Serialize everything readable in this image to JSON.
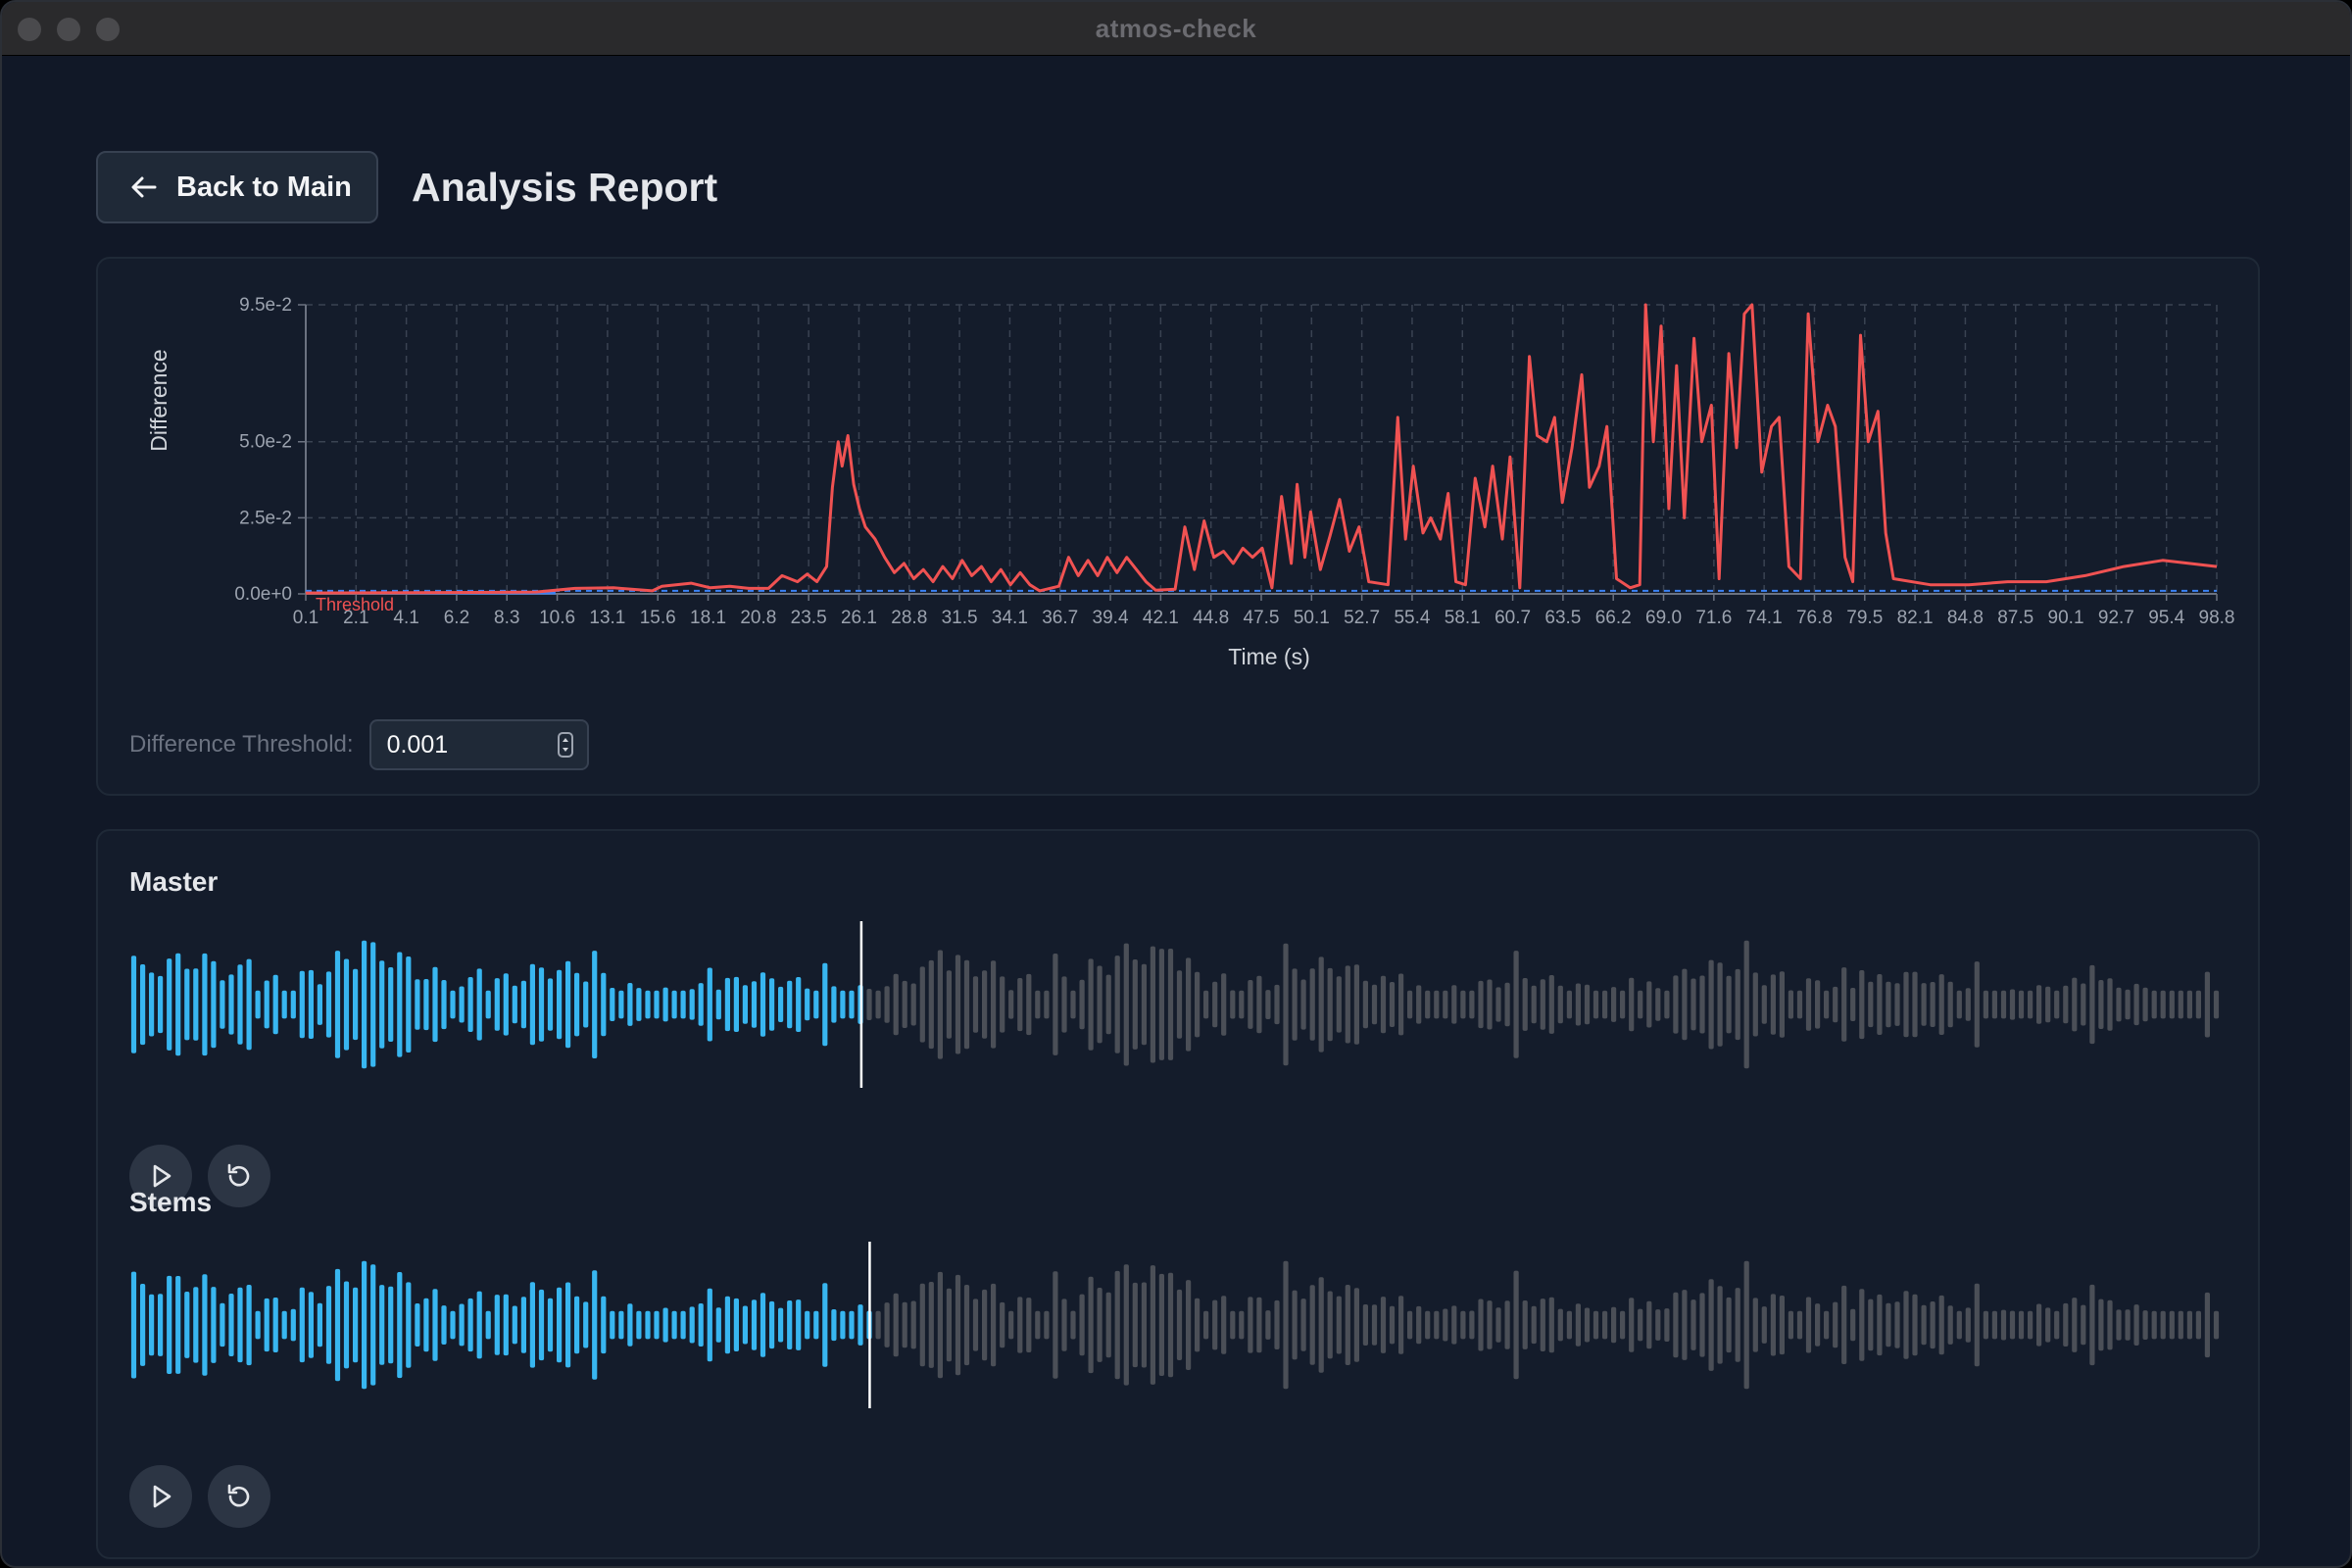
{
  "window": {
    "title": "atmos-check"
  },
  "header": {
    "back_label": "Back to Main",
    "title": "Analysis Report"
  },
  "controls": {
    "threshold_label": "Difference Threshold:",
    "threshold_value": "0.001"
  },
  "colors": {
    "diff_line": "#f05252",
    "threshold_line": "#3b82f6",
    "played": "#38b6f0",
    "unplayed": "#4b4f57",
    "grid": "#3a4352"
  },
  "tracks": [
    {
      "title": "Master",
      "progress": 0.35,
      "play_icon": "play-icon",
      "restart_icon": "restart-icon"
    },
    {
      "title": "Stems",
      "progress": 0.354,
      "play_icon": "play-icon",
      "restart_icon": "restart-icon"
    }
  ],
  "chart_data": {
    "type": "line",
    "xlabel": "Time (s)",
    "ylabel": "Difference",
    "xlim": [
      0.1,
      98.8
    ],
    "ylim": [
      0,
      0.095
    ],
    "x_ticks": [
      "0.1",
      "2.1",
      "4.1",
      "6.2",
      "8.3",
      "10.6",
      "13.1",
      "15.6",
      "18.1",
      "20.8",
      "23.5",
      "26.1",
      "28.8",
      "31.5",
      "34.1",
      "36.7",
      "39.4",
      "42.1",
      "44.8",
      "47.5",
      "50.1",
      "52.7",
      "55.4",
      "58.1",
      "60.7",
      "63.5",
      "66.2",
      "69.0",
      "71.6",
      "74.1",
      "76.8",
      "79.5",
      "82.1",
      "84.8",
      "87.5",
      "90.1",
      "92.7",
      "95.4",
      "98.8"
    ],
    "y_ticks": [
      {
        "label": "0.0e+0",
        "value": 0
      },
      {
        "label": "2.5e-2",
        "value": 0.025
      },
      {
        "label": "5.0e-2",
        "value": 0.05
      },
      {
        "label": "9.5e-2",
        "value": 0.095
      }
    ],
    "threshold": {
      "value": 0.001,
      "label": "Threshold"
    },
    "grid": true,
    "series": [
      {
        "values": [
          [
            0.1,
            0.0003
          ],
          [
            6,
            0.0004
          ],
          [
            12,
            0.0006
          ],
          [
            14,
            0.0018
          ],
          [
            16,
            0.002
          ],
          [
            18,
            0.001
          ],
          [
            18.5,
            0.0025
          ],
          [
            20,
            0.0035
          ],
          [
            21,
            0.002
          ],
          [
            22,
            0.0025
          ],
          [
            23,
            0.0018
          ],
          [
            24,
            0.0018
          ],
          [
            24.7,
            0.006
          ],
          [
            25.5,
            0.004
          ],
          [
            26,
            0.0065
          ],
          [
            26.5,
            0.004
          ],
          [
            27,
            0.009
          ],
          [
            27.3,
            0.035
          ],
          [
            27.6,
            0.05
          ],
          [
            27.8,
            0.042
          ],
          [
            28.1,
            0.052
          ],
          [
            28.4,
            0.036
          ],
          [
            28.7,
            0.028
          ],
          [
            29,
            0.022
          ],
          [
            29.5,
            0.018
          ],
          [
            30,
            0.012
          ],
          [
            30.5,
            0.007
          ],
          [
            31,
            0.01
          ],
          [
            31.5,
            0.005
          ],
          [
            32,
            0.008
          ],
          [
            32.5,
            0.004
          ],
          [
            33,
            0.009
          ],
          [
            33.5,
            0.005
          ],
          [
            34,
            0.011
          ],
          [
            34.5,
            0.006
          ],
          [
            35,
            0.009
          ],
          [
            35.5,
            0.004
          ],
          [
            36,
            0.008
          ],
          [
            36.5,
            0.003
          ],
          [
            37,
            0.007
          ],
          [
            37.5,
            0.003
          ],
          [
            38,
            0.001
          ],
          [
            39,
            0.0025
          ],
          [
            39.5,
            0.012
          ],
          [
            40,
            0.006
          ],
          [
            40.5,
            0.011
          ],
          [
            41,
            0.006
          ],
          [
            41.5,
            0.012
          ],
          [
            42,
            0.007
          ],
          [
            42.5,
            0.012
          ],
          [
            43,
            0.008
          ],
          [
            43.5,
            0.004
          ],
          [
            44,
            0.0012
          ],
          [
            45,
            0.0015
          ],
          [
            45.5,
            0.022
          ],
          [
            46,
            0.008
          ],
          [
            46.5,
            0.024
          ],
          [
            47,
            0.012
          ],
          [
            47.5,
            0.014
          ],
          [
            48,
            0.01
          ],
          [
            48.5,
            0.015
          ],
          [
            49,
            0.012
          ],
          [
            49.5,
            0.015
          ],
          [
            50,
            0.002
          ],
          [
            50.5,
            0.032
          ],
          [
            51,
            0.01
          ],
          [
            51.3,
            0.036
          ],
          [
            51.7,
            0.012
          ],
          [
            52,
            0.027
          ],
          [
            52.5,
            0.008
          ],
          [
            53,
            0.019
          ],
          [
            53.5,
            0.031
          ],
          [
            54,
            0.014
          ],
          [
            54.5,
            0.022
          ],
          [
            55,
            0.004
          ],
          [
            56,
            0.003
          ],
          [
            56.5,
            0.058
          ],
          [
            56.9,
            0.018
          ],
          [
            57.3,
            0.042
          ],
          [
            57.8,
            0.02
          ],
          [
            58.2,
            0.025
          ],
          [
            58.7,
            0.018
          ],
          [
            59.1,
            0.033
          ],
          [
            59.5,
            0.004
          ],
          [
            60,
            0.003
          ],
          [
            60.5,
            0.038
          ],
          [
            61,
            0.022
          ],
          [
            61.4,
            0.042
          ],
          [
            61.9,
            0.018
          ],
          [
            62.3,
            0.045
          ],
          [
            62.8,
            0.002
          ],
          [
            63.3,
            0.078
          ],
          [
            63.7,
            0.052
          ],
          [
            64.2,
            0.05
          ],
          [
            64.6,
            0.058
          ],
          [
            65,
            0.03
          ],
          [
            65.5,
            0.048
          ],
          [
            66,
            0.072
          ],
          [
            66.4,
            0.035
          ],
          [
            66.9,
            0.042
          ],
          [
            67.3,
            0.055
          ],
          [
            67.8,
            0.005
          ],
          [
            68.5,
            0.002
          ],
          [
            69,
            0.003
          ],
          [
            69.3,
            0.095
          ],
          [
            69.7,
            0.05
          ],
          [
            70.1,
            0.088
          ],
          [
            70.5,
            0.028
          ],
          [
            70.9,
            0.075
          ],
          [
            71.3,
            0.025
          ],
          [
            71.8,
            0.084
          ],
          [
            72.2,
            0.05
          ],
          [
            72.7,
            0.062
          ],
          [
            73.1,
            0.005
          ],
          [
            73.6,
            0.079
          ],
          [
            74,
            0.048
          ],
          [
            74.4,
            0.092
          ],
          [
            74.8,
            0.095
          ],
          [
            75.3,
            0.04
          ],
          [
            75.8,
            0.055
          ],
          [
            76.2,
            0.058
          ],
          [
            76.7,
            0.009
          ],
          [
            77.3,
            0.005
          ],
          [
            77.7,
            0.092
          ],
          [
            78.2,
            0.05
          ],
          [
            78.7,
            0.062
          ],
          [
            79.1,
            0.055
          ],
          [
            79.6,
            0.012
          ],
          [
            80,
            0.004
          ],
          [
            80.4,
            0.085
          ],
          [
            80.8,
            0.05
          ],
          [
            81.3,
            0.06
          ],
          [
            81.7,
            0.02
          ],
          [
            82.1,
            0.005
          ],
          [
            84,
            0.003
          ],
          [
            86,
            0.003
          ],
          [
            88,
            0.004
          ],
          [
            90,
            0.004
          ],
          [
            92,
            0.006
          ],
          [
            94,
            0.009
          ],
          [
            96,
            0.011
          ],
          [
            98.8,
            0.009
          ]
        ]
      }
    ]
  }
}
